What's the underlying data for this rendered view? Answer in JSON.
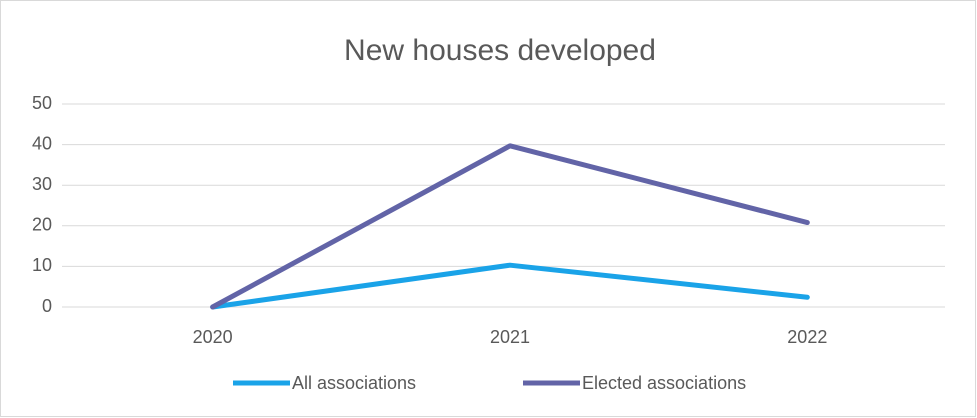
{
  "chart_data": {
    "type": "line",
    "title": "New houses developed",
    "categories": [
      "2020",
      "2021",
      "2022"
    ],
    "series": [
      {
        "name": "All associations",
        "color": "#1aa3e8",
        "values": [
          0,
          10.3,
          2.4
        ]
      },
      {
        "name": "Elected associations",
        "color": "#6264a7",
        "values": [
          0,
          39.7,
          20.8
        ]
      }
    ],
    "ylim": [
      0,
      50
    ],
    "yticks": [
      0,
      10,
      20,
      30,
      40,
      50
    ],
    "grid": true,
    "legend": "bottom"
  }
}
